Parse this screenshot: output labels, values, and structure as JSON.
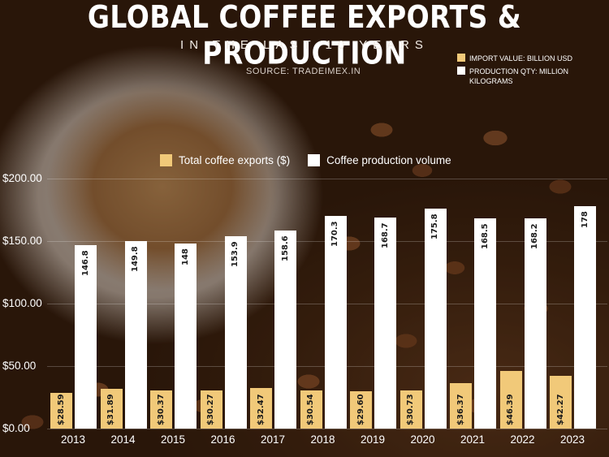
{
  "title": "GLOBAL COFFEE EXPORTS & PRODUCTION",
  "subtitle": "IN THE LAST 10 YEARS",
  "source": "SOURCE:  TRADEIMEX.IN",
  "colors": {
    "exports": "#f1c979",
    "production": "#ffffff",
    "text": "#ffffff"
  },
  "top_legend": [
    {
      "label": "IMPORT VALUE: BILLION USD",
      "color": "#f1c979"
    },
    {
      "label": "PRODUCTION  QTY: MILLION KILOGRAMS",
      "color": "#ffffff"
    }
  ],
  "chart_data": {
    "type": "bar",
    "legend_position": "top-center",
    "grid": true,
    "ylim": [
      0,
      200
    ],
    "yticks": [
      0,
      50,
      100,
      150,
      200
    ],
    "ytick_labels": [
      "$0.00",
      "$50.00",
      "$100.00",
      "$150.00",
      "$200.00"
    ],
    "categories": [
      "2013",
      "2014",
      "2015",
      "2016",
      "2017",
      "2018",
      "2019",
      "2020",
      "2021",
      "2022",
      "2023"
    ],
    "series": [
      {
        "name": "Total coffee exports ($)",
        "values": [
          28.59,
          31.89,
          30.37,
          30.27,
          32.47,
          30.54,
          29.6,
          30.73,
          36.37,
          46.39,
          42.27
        ],
        "labels": [
          "$28.59",
          "$31.89",
          "$30.37",
          "$30.27",
          "$32.47",
          "$30.54",
          "$29.60",
          "$30.73",
          "$36.37",
          "$46.39",
          "$42.27"
        ]
      },
      {
        "name": "Coffee production volume",
        "values": [
          146.8,
          149.8,
          148,
          153.9,
          158.6,
          170.3,
          168.7,
          175.8,
          168.5,
          168.2,
          178
        ],
        "labels": [
          "146.8",
          "149.8",
          "148",
          "153.9",
          "158.6",
          "170.3",
          "168.7",
          "175.8",
          "168.5",
          "168.2",
          "178"
        ]
      }
    ]
  }
}
